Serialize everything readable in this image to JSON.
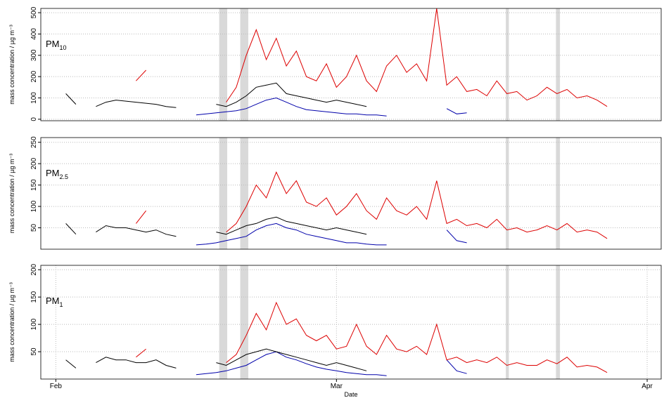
{
  "chart_data": [
    {
      "type": "line",
      "label": "PM",
      "label_subscript": "10",
      "ylabel": "mass concentration  /  µg m⁻³",
      "x": [
        33,
        34,
        35,
        36,
        37,
        38,
        39,
        40,
        41,
        42,
        43,
        44,
        45,
        46,
        47,
        48,
        49,
        50,
        51,
        52,
        53,
        54,
        55,
        56,
        57,
        58,
        59,
        60,
        61,
        62,
        63,
        64,
        65,
        66,
        67,
        68,
        69,
        70,
        71,
        72,
        73,
        74,
        75,
        76,
        77,
        78,
        79,
        80,
        81,
        82,
        83,
        84,
        85,
        86,
        87
      ],
      "xlim": [
        30.5,
        92.4
      ],
      "ylim": [
        -7,
        520
      ],
      "yticks": [
        0,
        100,
        200,
        300,
        400,
        500
      ],
      "grid": true,
      "shaded_periods": [
        [
          48.3,
          49.1
        ],
        [
          50.4,
          51.2
        ],
        [
          76.9,
          77.2
        ],
        [
          81.9,
          82.3
        ]
      ],
      "shade_color": "#d9d9d9",
      "series": [
        {
          "color": "#0000aa",
          "values": [
            null,
            null,
            null,
            null,
            null,
            null,
            null,
            null,
            null,
            null,
            null,
            null,
            null,
            20,
            25,
            30,
            35,
            40,
            50,
            70,
            90,
            100,
            80,
            60,
            45,
            40,
            35,
            30,
            25,
            25,
            20,
            20,
            15,
            null,
            null,
            null,
            null,
            null,
            50,
            25,
            30,
            null,
            null,
            null,
            null,
            null,
            null,
            null,
            null,
            null,
            null,
            null,
            null,
            null,
            null
          ]
        },
        {
          "color": "#000000",
          "values": [
            120,
            70,
            null,
            60,
            80,
            90,
            85,
            80,
            75,
            70,
            60,
            55,
            null,
            null,
            null,
            70,
            60,
            80,
            110,
            150,
            160,
            170,
            120,
            110,
            100,
            90,
            80,
            90,
            80,
            70,
            60,
            null,
            null,
            null,
            null,
            null,
            null,
            null,
            null,
            null,
            null,
            null,
            null,
            null,
            null,
            null,
            null,
            null,
            null,
            null,
            null,
            null,
            null,
            null,
            null
          ]
        },
        {
          "color": "#dd0000",
          "values": [
            null,
            null,
            null,
            null,
            null,
            null,
            null,
            180,
            230,
            null,
            null,
            null,
            null,
            null,
            null,
            null,
            80,
            150,
            300,
            420,
            280,
            380,
            250,
            320,
            200,
            180,
            260,
            150,
            200,
            300,
            180,
            130,
            250,
            300,
            220,
            260,
            180,
            520,
            160,
            200,
            130,
            140,
            110,
            180,
            120,
            130,
            90,
            110,
            150,
            120,
            140,
            100,
            110,
            90,
            60
          ]
        }
      ]
    },
    {
      "type": "line",
      "label": "PM",
      "label_subscript": "2.5",
      "ylabel": "mass concentration  /  µg m⁻³",
      "x": [
        33,
        34,
        35,
        36,
        37,
        38,
        39,
        40,
        41,
        42,
        43,
        44,
        45,
        46,
        47,
        48,
        49,
        50,
        51,
        52,
        53,
        54,
        55,
        56,
        57,
        58,
        59,
        60,
        61,
        62,
        63,
        64,
        65,
        66,
        67,
        68,
        69,
        70,
        71,
        72,
        73,
        74,
        75,
        76,
        77,
        78,
        79,
        80,
        81,
        82,
        83,
        84,
        85,
        86,
        87
      ],
      "xlim": [
        30.5,
        92.4
      ],
      "ylim": [
        0,
        261
      ],
      "yticks": [
        50,
        100,
        150,
        200,
        250
      ],
      "grid": true,
      "shaded_periods": [
        [
          48.3,
          49.1
        ],
        [
          50.4,
          51.2
        ],
        [
          76.9,
          77.2
        ],
        [
          81.9,
          82.3
        ]
      ],
      "shade_color": "#d9d9d9",
      "series": [
        {
          "color": "#0000aa",
          "values": [
            null,
            null,
            null,
            null,
            null,
            null,
            null,
            null,
            null,
            null,
            null,
            null,
            null,
            10,
            12,
            15,
            20,
            25,
            30,
            45,
            55,
            60,
            50,
            45,
            35,
            30,
            25,
            20,
            15,
            15,
            12,
            10,
            10,
            null,
            null,
            null,
            null,
            null,
            45,
            20,
            15,
            null,
            null,
            null,
            null,
            null,
            null,
            null,
            null,
            null,
            null,
            null,
            null,
            null,
            null
          ]
        },
        {
          "color": "#000000",
          "values": [
            60,
            35,
            null,
            40,
            55,
            50,
            50,
            45,
            40,
            45,
            35,
            30,
            null,
            null,
            null,
            40,
            35,
            45,
            55,
            60,
            70,
            75,
            65,
            60,
            55,
            50,
            45,
            50,
            45,
            40,
            35,
            null,
            null,
            null,
            null,
            null,
            null,
            null,
            null,
            null,
            null,
            null,
            null,
            null,
            null,
            null,
            null,
            null,
            null,
            null,
            null,
            null,
            null,
            null,
            null
          ]
        },
        {
          "color": "#dd0000",
          "values": [
            null,
            null,
            null,
            null,
            null,
            null,
            null,
            60,
            90,
            null,
            null,
            null,
            null,
            null,
            null,
            null,
            40,
            60,
            100,
            150,
            120,
            180,
            130,
            160,
            110,
            100,
            120,
            80,
            100,
            130,
            90,
            70,
            120,
            90,
            80,
            100,
            70,
            160,
            60,
            70,
            55,
            60,
            50,
            70,
            45,
            50,
            40,
            45,
            55,
            45,
            60,
            40,
            45,
            40,
            25
          ]
        }
      ]
    },
    {
      "type": "line",
      "label": "PM",
      "label_subscript": "1",
      "ylabel": "mass concentration  /  µg m⁻³",
      "xlabel": "Date",
      "x": [
        33,
        34,
        35,
        36,
        37,
        38,
        39,
        40,
        41,
        42,
        43,
        44,
        45,
        46,
        47,
        48,
        49,
        50,
        51,
        52,
        53,
        54,
        55,
        56,
        57,
        58,
        59,
        60,
        61,
        62,
        63,
        64,
        65,
        66,
        67,
        68,
        69,
        70,
        71,
        72,
        73,
        74,
        75,
        76,
        77,
        78,
        79,
        80,
        81,
        82,
        83,
        84,
        85,
        86,
        87
      ],
      "xlim": [
        30.5,
        92.4
      ],
      "xticks": [
        {
          "value": 32,
          "label": "Feb"
        },
        {
          "value": 60,
          "label": "Mar"
        },
        {
          "value": 91,
          "label": "Apr"
        }
      ],
      "ylim": [
        0,
        208
      ],
      "yticks": [
        50,
        100,
        150,
        200
      ],
      "grid": true,
      "shaded_periods": [
        [
          48.3,
          49.1
        ],
        [
          50.4,
          51.2
        ],
        [
          76.9,
          77.2
        ],
        [
          81.9,
          82.3
        ]
      ],
      "shade_color": "#d9d9d9",
      "series": [
        {
          "color": "#0000aa",
          "values": [
            null,
            null,
            null,
            null,
            null,
            null,
            null,
            null,
            null,
            null,
            null,
            null,
            null,
            8,
            10,
            12,
            15,
            20,
            25,
            35,
            45,
            50,
            40,
            35,
            28,
            22,
            18,
            15,
            12,
            10,
            8,
            8,
            6,
            null,
            null,
            null,
            null,
            null,
            35,
            15,
            10,
            null,
            null,
            null,
            null,
            null,
            null,
            null,
            null,
            null,
            null,
            null,
            null,
            null,
            null
          ]
        },
        {
          "color": "#000000",
          "values": [
            35,
            20,
            null,
            30,
            40,
            35,
            35,
            30,
            30,
            35,
            25,
            20,
            null,
            null,
            null,
            30,
            25,
            35,
            45,
            50,
            55,
            50,
            45,
            40,
            35,
            30,
            25,
            30,
            25,
            20,
            15,
            null,
            null,
            null,
            null,
            null,
            null,
            null,
            null,
            null,
            null,
            null,
            null,
            null,
            null,
            null,
            null,
            null,
            null,
            null,
            null,
            null,
            null,
            null,
            null
          ]
        },
        {
          "color": "#dd0000",
          "values": [
            null,
            null,
            null,
            null,
            null,
            null,
            null,
            40,
            55,
            null,
            null,
            null,
            null,
            null,
            null,
            null,
            30,
            45,
            80,
            120,
            90,
            140,
            100,
            110,
            80,
            70,
            80,
            55,
            60,
            100,
            60,
            45,
            80,
            55,
            50,
            60,
            45,
            100,
            35,
            40,
            30,
            35,
            30,
            40,
            25,
            30,
            25,
            25,
            35,
            28,
            40,
            22,
            25,
            22,
            12
          ]
        }
      ]
    }
  ]
}
